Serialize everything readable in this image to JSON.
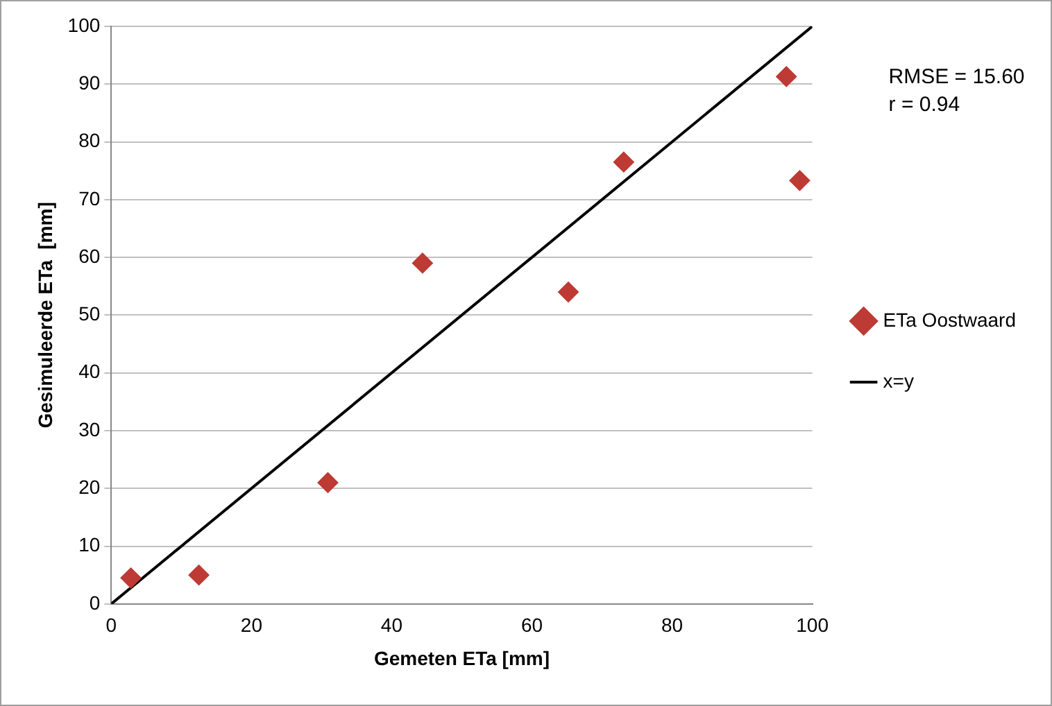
{
  "chart_data": {
    "type": "scatter",
    "xlabel": "Gemeten ETa [mm]",
    "ylabel": "Gesimuleerde ETa  [mm]",
    "xlim": [
      0,
      100
    ],
    "xticks": [
      0,
      20,
      40,
      60,
      80,
      100
    ],
    "ylim": [
      0,
      100
    ],
    "yticks": [
      0,
      10,
      20,
      30,
      40,
      50,
      60,
      70,
      80,
      90,
      100
    ],
    "grid": "y",
    "legend": "right",
    "annotations": [
      "RMSE = 15.60",
      "r = 0.94"
    ],
    "series": [
      {
        "name": "ETa Oostwaard",
        "marker": "diamond",
        "color": "#be3a34",
        "x": [
          2.8,
          12.5,
          30.9,
          44.4,
          65.2,
          73.1,
          96.3,
          98.2
        ],
        "values": [
          4.5,
          5,
          21,
          59,
          54,
          76.5,
          91.3,
          73.3
        ]
      },
      {
        "name": "x=y",
        "type": "line",
        "marker": "none",
        "color": "#000000",
        "x": [
          0,
          100
        ],
        "values": [
          0,
          100
        ]
      }
    ]
  }
}
